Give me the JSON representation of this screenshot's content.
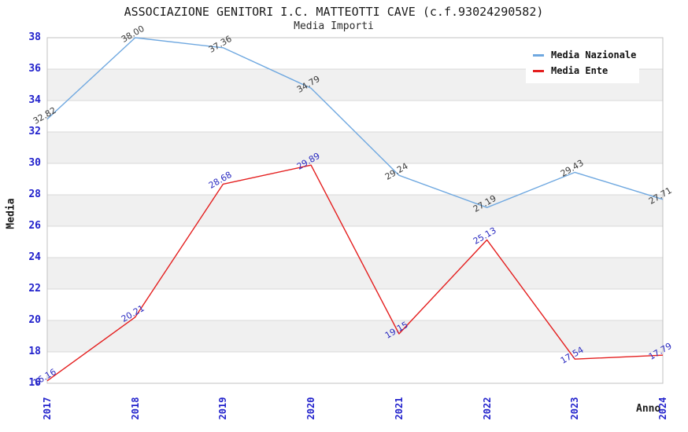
{
  "header": {
    "title": "ASSOCIAZIONE GENITORI I.C. MATTEOTTI CAVE (c.f.93024290582)",
    "subtitle": "Media Importi"
  },
  "colors": {
    "nazionale_line": "#6FA8E0",
    "ente_line": "#E41E1E",
    "tick_text": "#2222cc",
    "nazionale_label_text": "#3a3a3a",
    "ente_label_text": "#2A2AC0",
    "band_gray": "#f0f0f0",
    "gridline": "#d9d9d9",
    "plot_border": "#c0c0c0"
  },
  "chart_data": {
    "type": "line",
    "title": "ASSOCIAZIONE GENITORI I.C. MATTEOTTI CAVE (c.f.93024290582)",
    "subtitle": "Media Importi",
    "xlabel": "Anno",
    "ylabel": "Media",
    "categories": [
      "2017",
      "2018",
      "2019",
      "2020",
      "2021",
      "2022",
      "2023",
      "2024"
    ],
    "ylim": [
      16,
      38
    ],
    "ytick_step": 2,
    "grid": "horizontal-lines-with-alternating-gray-bands",
    "legend_position": "top-right-inside",
    "series": [
      {
        "name": "Media Nazionale",
        "color": "#6FA8E0",
        "label_color": "#3a3a3a",
        "values": [
          32.82,
          38.0,
          37.36,
          34.79,
          29.24,
          27.19,
          29.43,
          27.71
        ],
        "labels": [
          "32.82",
          "38.00",
          "37.36",
          "34.79",
          "29.24",
          "27.19",
          "29.43",
          "27.71"
        ]
      },
      {
        "name": "Media Ente",
        "color": "#E41E1E",
        "label_color": "#2A2AC0",
        "values": [
          16.16,
          20.21,
          28.68,
          29.89,
          19.15,
          25.13,
          17.54,
          17.79
        ],
        "labels": [
          "16.16",
          "20.21",
          "28.68",
          "29.89",
          "19.15",
          "25.13",
          "17.54",
          "17.79"
        ]
      }
    ]
  }
}
